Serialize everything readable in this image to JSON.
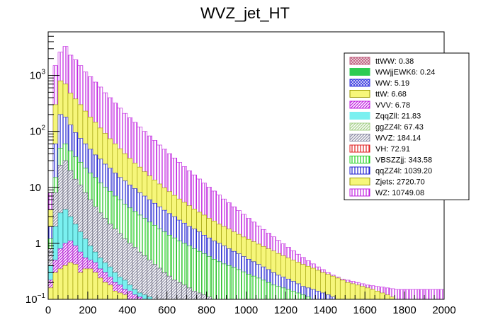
{
  "chart_data": {
    "type": "bar",
    "subtype": "stacked-histogram",
    "title": "WVZ_jet_HT",
    "xlabel": "",
    "ylabel": "",
    "xlim": [
      0,
      2000
    ],
    "ylim": [
      0.1,
      6000
    ],
    "yscale": "log",
    "legend_position": "top-right",
    "bin_width": 25,
    "x_ticks": [
      0,
      200,
      400,
      600,
      800,
      1000,
      1200,
      1400,
      1600,
      1800,
      2000
    ],
    "x_tick_labels": [
      "0",
      "200",
      "400",
      "600",
      "800",
      "1000",
      "1200",
      "1400",
      "1600",
      "1800",
      "2000"
    ],
    "y_ticks": [
      0.1,
      1,
      10,
      100,
      1000
    ],
    "y_tick_labels": [
      {
        "base": "10",
        "exp": "−1"
      },
      {
        "base": "1",
        "exp": ""
      },
      {
        "base": "10",
        "exp": ""
      },
      {
        "base": "10",
        "exp": "2"
      },
      {
        "base": "10",
        "exp": "3"
      }
    ],
    "series": [
      {
        "name": "ttWW",
        "yield": "0.38",
        "color": "#c06080",
        "pattern": "grid"
      },
      {
        "name": "WWjjEWK6",
        "yield": "0.24",
        "color": "#2ecc52",
        "pattern": "solid"
      },
      {
        "name": "WW",
        "yield": "5.19",
        "color": "#3a3ae0",
        "pattern": "cross"
      },
      {
        "name": "ttW",
        "yield": "6.68",
        "color": "#f6f67a",
        "pattern": "solid"
      },
      {
        "name": "VVV",
        "yield": "6.78",
        "color": "#c020e0",
        "pattern": "diag"
      },
      {
        "name": "ZqqZll",
        "yield": "21.83",
        "color": "#7af0f0",
        "pattern": "solid"
      },
      {
        "name": "ggZZ4l",
        "yield": "67.43",
        "color": "#a6d08a",
        "pattern": "diag"
      },
      {
        "name": "WVZ",
        "yield": "184.14",
        "color": "#9090a8",
        "pattern": "diag"
      },
      {
        "name": "VH",
        "yield": "72.91",
        "color": "#e02020",
        "pattern": "vert"
      },
      {
        "name": "VBSZZjj",
        "yield": "343.58",
        "color": "#20d020",
        "pattern": "vert"
      },
      {
        "name": "qqZZ4l",
        "yield": "1039.20",
        "color": "#2020d0",
        "pattern": "vert"
      },
      {
        "name": "Zjets",
        "yield": "2720.70",
        "color": "#f6f67a",
        "pattern": "solid"
      },
      {
        "name": "WZ",
        "yield": "10749.08",
        "color": "#c020e0",
        "pattern": "vert"
      }
    ],
    "cumulative_levels": [
      {
        "name": "lower_stack",
        "values": [
          0.16,
          0.3,
          0.35,
          0.4,
          0.45,
          0.42,
          0.3,
          0.35,
          0.35,
          0.3,
          0.24,
          0.2,
          0.18,
          0.14,
          0.13,
          0.12,
          0.1,
          0.1,
          0.1,
          0.1,
          0.1,
          0.1,
          0.1,
          0.1,
          0.1,
          0.1,
          0.1,
          0.1,
          0.1,
          0.1,
          0.1,
          0.1,
          0.1,
          0.1,
          0.1,
          0.1,
          0.1,
          0.1,
          0.1,
          0.1,
          0.1,
          0.1,
          0.1,
          0.1,
          0.1,
          0.1,
          0.1,
          0.1,
          0.1,
          0.1,
          0.1,
          0.1,
          0.1,
          0.1,
          0.1,
          0.1,
          0.1,
          0.1,
          0.1,
          0.1,
          0.1,
          0.1,
          0.1,
          0.1,
          0.1,
          0.1,
          0.1,
          0.1,
          0.1,
          0.1,
          0.1,
          0.1,
          0.1,
          0.1,
          0.1,
          0.1,
          0.1,
          0.1,
          0.1,
          0.1
        ]
      },
      {
        "name": "through_VVV",
        "values": [
          0.22,
          0.5,
          0.8,
          1.0,
          1.1,
          0.9,
          0.7,
          0.55,
          0.5,
          0.45,
          0.35,
          0.3,
          0.25,
          0.2,
          0.18,
          0.15,
          0.14,
          0.12,
          0.11,
          0.1,
          0.1,
          0.1,
          0.1,
          0.1,
          0.1,
          0.1,
          0.1,
          0.1,
          0.1,
          0.1,
          0.1,
          0.1,
          0.1,
          0.1,
          0.1,
          0.1,
          0.1,
          0.1,
          0.1,
          0.1,
          0.1,
          0.1,
          0.1,
          0.1,
          0.1,
          0.1,
          0.1,
          0.1,
          0.1,
          0.1,
          0.1,
          0.1,
          0.1,
          0.1,
          0.1,
          0.1,
          0.1,
          0.1,
          0.1,
          0.1,
          0.1,
          0.1,
          0.1,
          0.1,
          0.1,
          0.1,
          0.1,
          0.1,
          0.1,
          0.1,
          0.1,
          0.1,
          0.1,
          0.1,
          0.1,
          0.1,
          0.1,
          0.1,
          0.1,
          0.1
        ]
      },
      {
        "name": "through_ggZZ4l",
        "values": [
          0.4,
          2.0,
          3.5,
          4.0,
          3.0,
          2.2,
          1.6,
          1.2,
          0.9,
          0.7,
          0.55,
          0.45,
          0.38,
          0.3,
          0.25,
          0.22,
          0.18,
          0.15,
          0.13,
          0.12,
          0.11,
          0.1,
          0.1,
          0.1,
          0.1,
          0.1,
          0.1,
          0.1,
          0.1,
          0.1,
          0.1,
          0.1,
          0.1,
          0.1,
          0.1,
          0.1,
          0.1,
          0.1,
          0.1,
          0.1,
          0.1,
          0.1,
          0.1,
          0.1,
          0.1,
          0.1,
          0.1,
          0.1,
          0.1,
          0.1,
          0.1,
          0.1,
          0.1,
          0.1,
          0.1,
          0.1,
          0.1,
          0.1,
          0.1,
          0.1,
          0.1,
          0.1,
          0.1,
          0.1,
          0.1,
          0.1,
          0.1,
          0.1,
          0.1,
          0.1,
          0.1,
          0.1,
          0.1,
          0.1,
          0.1,
          0.1,
          0.1,
          0.1,
          0.1,
          0.1
        ]
      },
      {
        "name": "through_WVZ",
        "values": [
          0.8,
          8,
          25,
          30,
          20,
          14,
          11,
          8,
          6,
          4.5,
          3.5,
          2.8,
          2.2,
          1.8,
          1.5,
          1.2,
          1.0,
          0.85,
          0.7,
          0.6,
          0.5,
          0.42,
          0.36,
          0.3,
          0.26,
          0.22,
          0.2,
          0.18,
          0.16,
          0.14,
          0.13,
          0.12,
          0.11,
          0.1,
          0.1,
          0.1,
          0.1,
          0.1,
          0.1,
          0.1,
          0.1,
          0.1,
          0.1,
          0.1,
          0.1,
          0.1,
          0.1,
          0.1,
          0.1,
          0.1,
          0.1,
          0.1,
          0.1,
          0.1,
          0.1,
          0.1,
          0.1,
          0.1,
          0.1,
          0.1,
          0.1,
          0.1,
          0.1,
          0.1,
          0.1,
          0.1,
          0.1,
          0.1,
          0.1,
          0.1,
          0.1,
          0.1,
          0.1,
          0.1,
          0.1,
          0.1,
          0.1,
          0.1,
          0.1,
          0.1
        ]
      },
      {
        "name": "through_VBSZZjj",
        "values": [
          1.2,
          15,
          50,
          60,
          45,
          35,
          28,
          22,
          18,
          15,
          12,
          10,
          8.5,
          7,
          6,
          5,
          4.3,
          3.7,
          3.2,
          2.8,
          2.4,
          2.1,
          1.8,
          1.6,
          1.4,
          1.25,
          1.1,
          1.0,
          0.9,
          0.8,
          0.72,
          0.65,
          0.58,
          0.52,
          0.47,
          0.43,
          0.4,
          0.37,
          0.34,
          0.31,
          0.28,
          0.26,
          0.24,
          0.22,
          0.2,
          0.18,
          0.17,
          0.16,
          0.15,
          0.14,
          0.13,
          0.12,
          0.11,
          0.1,
          0.1,
          0.1,
          0.1,
          0.1,
          0.1,
          0.1,
          0.1,
          0.1,
          0.1,
          0.1,
          0.1,
          0.1,
          0.1,
          0.1,
          0.1,
          0.1,
          0.1,
          0.1,
          0.1,
          0.1,
          0.1,
          0.1,
          0.1,
          0.1,
          0.1,
          0.1
        ]
      },
      {
        "name": "through_qqZZ4l",
        "values": [
          2,
          60,
          200,
          180,
          130,
          95,
          75,
          60,
          48,
          38,
          32,
          26,
          22,
          18,
          15,
          13,
          11,
          9.5,
          8,
          7,
          6,
          5.2,
          4.5,
          3.9,
          3.4,
          3.0,
          2.6,
          2.3,
          2.0,
          1.8,
          1.6,
          1.4,
          1.25,
          1.1,
          1.0,
          0.9,
          0.8,
          0.72,
          0.65,
          0.58,
          0.52,
          0.47,
          0.42,
          0.38,
          0.34,
          0.3,
          0.27,
          0.25,
          0.23,
          0.21,
          0.19,
          0.17,
          0.16,
          0.15,
          0.14,
          0.13,
          0.12,
          0.11,
          0.1,
          0.1,
          0.1,
          0.1,
          0.1,
          0.1,
          0.1,
          0.1,
          0.1,
          0.1,
          0.1,
          0.1,
          0.1,
          0.1,
          0.1,
          0.1,
          0.1,
          0.1,
          0.1,
          0.1,
          0.1,
          0.1
        ]
      },
      {
        "name": "through_Zjets",
        "values": [
          4,
          300,
          800,
          700,
          480,
          380,
          300,
          230,
          180,
          145,
          115,
          92,
          74,
          60,
          49,
          40,
          33,
          27,
          23,
          19,
          16,
          13.5,
          11.5,
          9.8,
          8.4,
          7.2,
          6.2,
          5.4,
          4.7,
          4.1,
          3.6,
          3.2,
          2.8,
          2.5,
          2.2,
          2.0,
          1.8,
          1.6,
          1.45,
          1.3,
          1.18,
          1.07,
          0.97,
          0.88,
          0.8,
          0.73,
          0.66,
          0.6,
          0.55,
          0.5,
          0.46,
          0.42,
          0.39,
          0.36,
          0.33,
          0.3,
          0.28,
          0.26,
          0.24,
          0.22,
          0.2,
          0.19,
          0.18,
          0.17,
          0.16,
          0.15,
          0.14,
          0.13,
          0.12,
          0.11,
          0.1,
          0.1,
          0.1,
          0.1,
          0.1,
          0.1,
          0.1,
          0.1,
          0.1,
          0.1
        ]
      },
      {
        "name": "total_WZ",
        "values": [
          8,
          1500,
          2600,
          3300,
          2300,
          1900,
          1500,
          1150,
          950,
          760,
          620,
          490,
          400,
          320,
          260,
          210,
          175,
          145,
          120,
          100,
          83,
          69,
          57,
          48,
          40,
          33.5,
          28,
          23.5,
          19.8,
          16.7,
          14.1,
          11.9,
          10.1,
          8.6,
          7.3,
          6.2,
          5.3,
          4.5,
          3.85,
          3.3,
          2.8,
          2.4,
          2.05,
          1.77,
          1.52,
          1.31,
          1.13,
          0.98,
          0.85,
          0.74,
          0.64,
          0.56,
          0.49,
          0.43,
          0.38,
          0.34,
          0.3,
          0.27,
          0.25,
          0.23,
          0.22,
          0.21,
          0.2,
          0.19,
          0.18,
          0.175,
          0.17,
          0.165,
          0.16,
          0.155,
          0.15,
          0.15,
          0.15,
          0.15,
          0.15,
          0.15,
          0.15,
          0.15,
          0.15,
          0.15
        ]
      }
    ]
  }
}
